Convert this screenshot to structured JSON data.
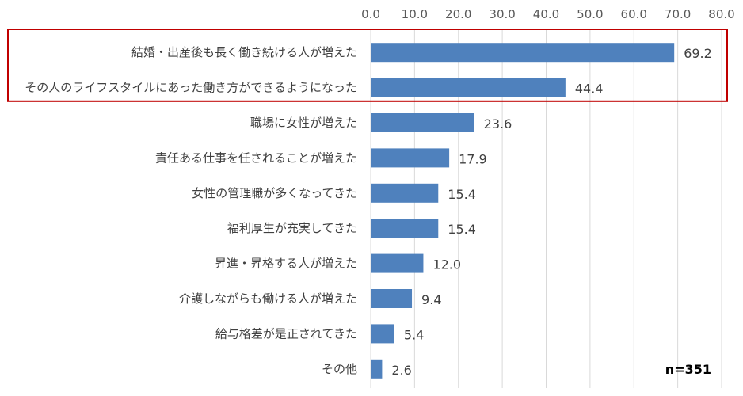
{
  "chart_data": {
    "type": "bar",
    "orientation": "horizontal",
    "categories": [
      "結婚・出産後も長く働き続ける人が増えた",
      "その人のライフスタイルにあった働き方ができるようになった",
      "職場に女性が増えた",
      "責任ある仕事を任されることが増えた",
      "女性の管理職が多くなってきた",
      "福利厚生が充実してきた",
      "昇進・昇格する人が増えた",
      "介護しながらも働ける人が増えた",
      "給与格差が是正されてきた",
      "その他"
    ],
    "values": [
      69.2,
      44.4,
      23.6,
      17.9,
      15.4,
      15.4,
      12.0,
      9.4,
      5.4,
      2.6
    ],
    "value_labels": [
      "69.2",
      "44.4",
      "23.6",
      "17.9",
      "15.4",
      "15.4",
      "12.0",
      "9.4",
      "5.4",
      "2.6"
    ],
    "xlim": [
      0,
      80
    ],
    "x_ticks": [
      "0.0",
      "10.0",
      "20.0",
      "30.0",
      "40.0",
      "50.0",
      "60.0",
      "70.0",
      "80.0"
    ],
    "x_axis_position": "top",
    "grid": true,
    "highlight_box": {
      "categories": [
        0,
        1
      ],
      "color": "#C00000"
    },
    "bar_color": "#4F81BD",
    "annotation": "n=351"
  }
}
